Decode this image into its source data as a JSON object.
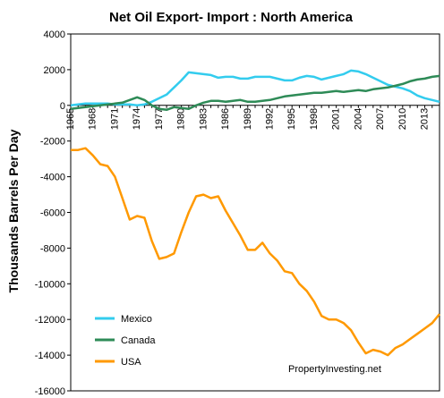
{
  "chart_data": {
    "type": "line",
    "title": "Net Oil Export- Import : North America",
    "ylabel": "Thousands Barrels Per Day",
    "xlabel": "",
    "source_label": "PropertyInvesting.net",
    "ylim": [
      -16000,
      4000
    ],
    "yticks": [
      4000,
      2000,
      0,
      -2000,
      -4000,
      -6000,
      -8000,
      -10000,
      -12000,
      -14000,
      -16000
    ],
    "ytick_labels": [
      "4000",
      "2000",
      "0",
      "-2000",
      "-4000",
      "-6000",
      "-8000",
      "-10000",
      "-12000",
      "-14000",
      "-16000"
    ],
    "x": [
      1965,
      1966,
      1967,
      1968,
      1969,
      1970,
      1971,
      1972,
      1973,
      1974,
      1975,
      1976,
      1977,
      1978,
      1979,
      1980,
      1981,
      1982,
      1983,
      1984,
      1985,
      1986,
      1987,
      1988,
      1989,
      1990,
      1991,
      1992,
      1993,
      1994,
      1995,
      1996,
      1997,
      1998,
      1999,
      2000,
      2001,
      2002,
      2003,
      2004,
      2005,
      2006,
      2007,
      2008,
      2009,
      2010,
      2011,
      2012,
      2013,
      2014,
      2015
    ],
    "xtick_labels": [
      "1965",
      "1968",
      "1971",
      "1974",
      "1977",
      "1980",
      "1983",
      "1986",
      "1989",
      "1992",
      "1995",
      "1998",
      "2001",
      "2004",
      "2007",
      "2010",
      "2013"
    ],
    "legend_position": "bottom-left",
    "series": [
      {
        "name": "Mexico",
        "color": "#33ccee",
        "values": [
          0,
          50,
          100,
          100,
          100,
          100,
          50,
          50,
          50,
          0,
          50,
          200,
          400,
          600,
          1000,
          1400,
          1850,
          1800,
          1750,
          1700,
          1550,
          1600,
          1600,
          1500,
          1500,
          1600,
          1600,
          1600,
          1500,
          1400,
          1400,
          1550,
          1650,
          1600,
          1450,
          1550,
          1650,
          1750,
          1950,
          1900,
          1750,
          1550,
          1350,
          1150,
          1050,
          950,
          800,
          550,
          400,
          300,
          200
        ]
      },
      {
        "name": "Canada",
        "color": "#2e8b57",
        "values": [
          -200,
          -150,
          -100,
          -50,
          0,
          50,
          100,
          150,
          300,
          450,
          300,
          0,
          -200,
          -250,
          -100,
          -150,
          -200,
          0,
          150,
          250,
          250,
          200,
          250,
          300,
          200,
          200,
          250,
          300,
          400,
          500,
          550,
          600,
          650,
          700,
          700,
          750,
          800,
          750,
          800,
          850,
          800,
          900,
          950,
          1000,
          1100,
          1200,
          1350,
          1450,
          1500,
          1600,
          1650
        ]
      },
      {
        "name": "USA",
        "color": "#ff9900",
        "values": [
          -2500,
          -2500,
          -2400,
          -2800,
          -3300,
          -3400,
          -4000,
          -5200,
          -6400,
          -6200,
          -6300,
          -7600,
          -8600,
          -8500,
          -8300,
          -7100,
          -6000,
          -5100,
          -5000,
          -5200,
          -5100,
          -5900,
          -6600,
          -7300,
          -8100,
          -8100,
          -7700,
          -8300,
          -8700,
          -9300,
          -9400,
          -10000,
          -10400,
          -11000,
          -11800,
          -12000,
          -12000,
          -12200,
          -12600,
          -13300,
          -13900,
          -13700,
          -13800,
          -14000,
          -13600,
          -13400,
          -13100,
          -12800,
          -12500,
          -12200,
          -11700
        ]
      }
    ]
  }
}
